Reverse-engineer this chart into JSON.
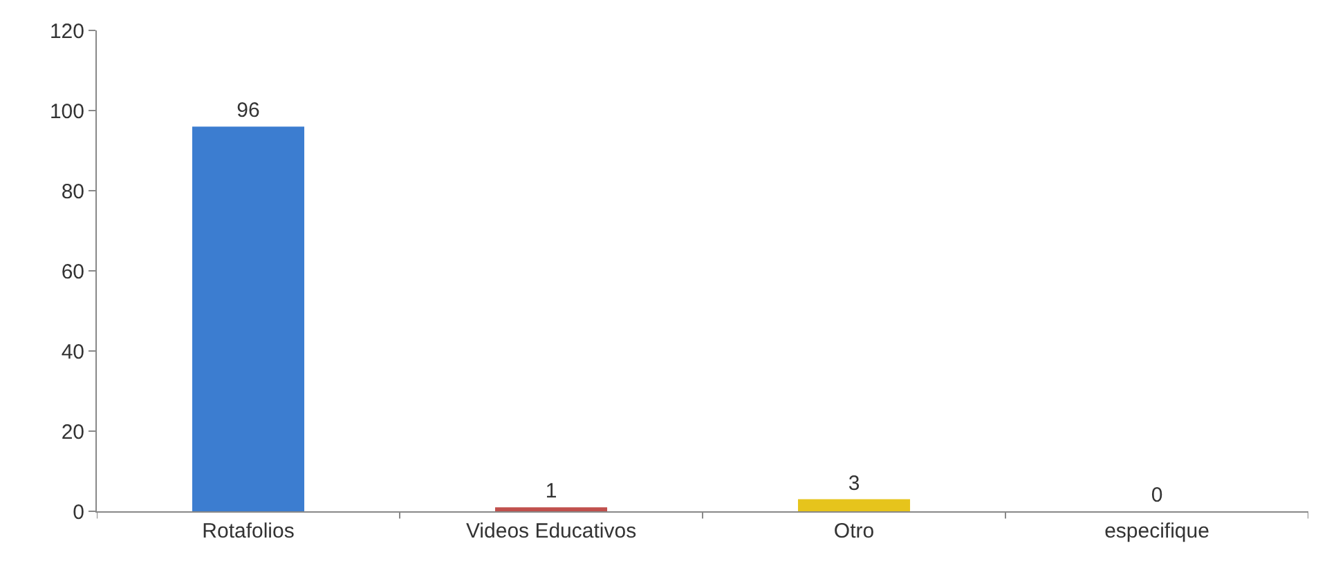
{
  "chart_data": {
    "type": "bar",
    "categories": [
      "Rotafolios",
      "Videos Educativos",
      "Otro",
      "especifique"
    ],
    "values": [
      96,
      1,
      3,
      0
    ],
    "colors": [
      "#3c7dd0",
      "#c0504d",
      "#e6c41c",
      "#9bbb59"
    ],
    "ylim": [
      0,
      120
    ],
    "yticks": [
      0,
      20,
      40,
      60,
      80,
      100,
      120
    ],
    "data_labels": true
  }
}
